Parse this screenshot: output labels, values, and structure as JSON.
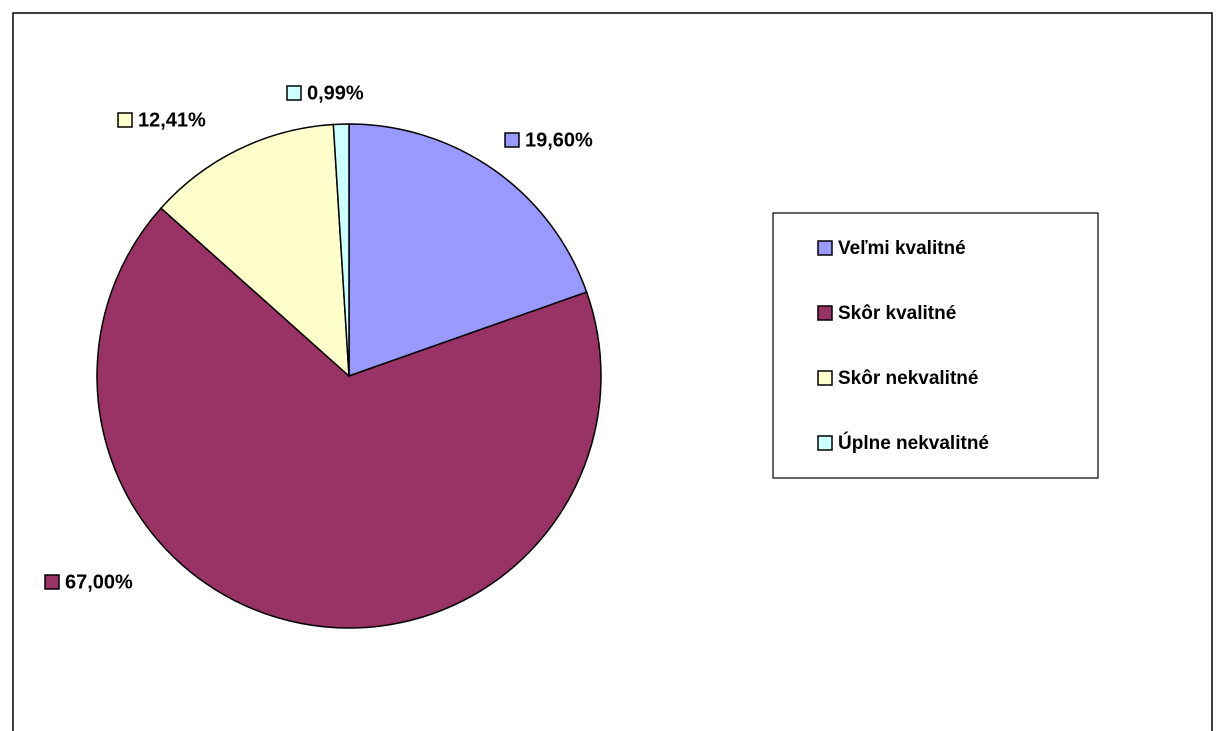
{
  "chart_data": {
    "type": "pie",
    "categories": [
      "Veľmi kvalitné",
      "Skôr kvalitné",
      "Skôr nekvalitné",
      "Úplne nekvalitné"
    ],
    "values": [
      19.6,
      67,
      12.41,
      0.99
    ],
    "value_labels": [
      "19,60%",
      "67,00%",
      "12,41%",
      "0,99%"
    ],
    "colors": [
      "#9999ff",
      "#993366",
      "#ffffcc",
      "#ccffff"
    ],
    "legend": "right"
  }
}
